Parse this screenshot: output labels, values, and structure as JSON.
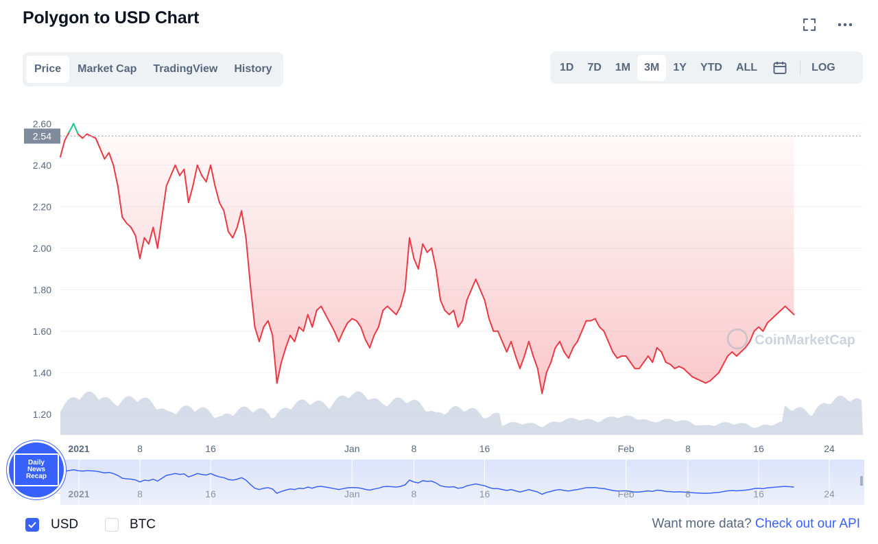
{
  "page": {
    "title": "Polygon to USD Chart"
  },
  "header_icons": [
    "fullscreen-icon",
    "more-icon"
  ],
  "tabs": [
    {
      "label": "Price",
      "active": true
    },
    {
      "label": "Market Cap",
      "active": false
    },
    {
      "label": "TradingView",
      "active": false
    },
    {
      "label": "History",
      "active": false
    }
  ],
  "ranges": [
    {
      "label": "1D",
      "active": false
    },
    {
      "label": "7D",
      "active": false
    },
    {
      "label": "1M",
      "active": false
    },
    {
      "label": "3M",
      "active": true
    },
    {
      "label": "1Y",
      "active": false
    },
    {
      "label": "YTD",
      "active": false
    },
    {
      "label": "ALL",
      "active": false
    }
  ],
  "log_label": "LOG",
  "watermark": "CoinMarketCap",
  "badge": {
    "lines": [
      "Daily",
      "News",
      "Recap"
    ]
  },
  "currencies": [
    {
      "label": "USD",
      "checked": true
    },
    {
      "label": "BTC",
      "checked": false
    }
  ],
  "api": {
    "text": "Want more data?",
    "link": "Check out our API"
  },
  "colors": {
    "down": "#ea3943",
    "up": "#16c784",
    "volume": "#cfd6e4",
    "accent": "#3861fb",
    "navigator_line": "#3861fb"
  },
  "chart_data": {
    "type": "line",
    "y_ticks": [
      "2.60",
      "2.40",
      "2.20",
      "2.00",
      "1.80",
      "1.60",
      "1.40",
      "1.20"
    ],
    "ylim": [
      1.1,
      2.7
    ],
    "reference_value": 2.54,
    "reference_label": "2.54",
    "x_ticks": [
      {
        "label": "2021",
        "bold": true,
        "day": 0
      },
      {
        "label": "8",
        "day": 7
      },
      {
        "label": "16",
        "day": 15
      },
      {
        "label": "Jan",
        "day": 31
      },
      {
        "label": "8",
        "day": 38
      },
      {
        "label": "16",
        "day": 46
      },
      {
        "label": "Feb",
        "day": 62
      },
      {
        "label": "8",
        "day": 69
      },
      {
        "label": "16",
        "day": 77
      },
      {
        "label": "24",
        "day": 85
      }
    ],
    "x_range_days": [
      -2,
      88.8
    ],
    "series": [
      {
        "points": [
          [
            -2,
            2.44
          ],
          [
            -1.5,
            2.52
          ],
          [
            -1,
            2.56
          ],
          [
            -0.5,
            2.6
          ],
          [
            0,
            2.55
          ],
          [
            0.5,
            2.53
          ],
          [
            1,
            2.55
          ],
          [
            1.5,
            2.54
          ],
          [
            2,
            2.53
          ],
          [
            2.5,
            2.48
          ],
          [
            3,
            2.43
          ],
          [
            3.5,
            2.46
          ],
          [
            4,
            2.4
          ],
          [
            4.5,
            2.3
          ],
          [
            5,
            2.15
          ],
          [
            5.5,
            2.12
          ],
          [
            6,
            2.1
          ],
          [
            6.5,
            2.06
          ],
          [
            7,
            1.95
          ],
          [
            7.5,
            2.05
          ],
          [
            8,
            2.02
          ],
          [
            8.5,
            2.1
          ],
          [
            9,
            2.0
          ],
          [
            9.5,
            2.15
          ],
          [
            10,
            2.3
          ],
          [
            10.5,
            2.35
          ],
          [
            11,
            2.4
          ],
          [
            11.5,
            2.35
          ],
          [
            12,
            2.38
          ],
          [
            12.5,
            2.22
          ],
          [
            13,
            2.3
          ],
          [
            13.5,
            2.4
          ],
          [
            14,
            2.35
          ],
          [
            14.5,
            2.32
          ],
          [
            15,
            2.4
          ],
          [
            15.5,
            2.3
          ],
          [
            16,
            2.22
          ],
          [
            16.5,
            2.18
          ],
          [
            17,
            2.08
          ],
          [
            17.5,
            2.05
          ],
          [
            18,
            2.1
          ],
          [
            18.5,
            2.18
          ],
          [
            19,
            2.05
          ],
          [
            19.5,
            1.82
          ],
          [
            20,
            1.62
          ],
          [
            20.5,
            1.55
          ],
          [
            21,
            1.62
          ],
          [
            21.5,
            1.65
          ],
          [
            22,
            1.58
          ],
          [
            22.5,
            1.35
          ],
          [
            23,
            1.45
          ],
          [
            23.5,
            1.52
          ],
          [
            24,
            1.58
          ],
          [
            24.5,
            1.55
          ],
          [
            25,
            1.62
          ],
          [
            25.5,
            1.6
          ],
          [
            26,
            1.68
          ],
          [
            26.5,
            1.62
          ],
          [
            27,
            1.7
          ],
          [
            27.5,
            1.72
          ],
          [
            28,
            1.68
          ],
          [
            28.5,
            1.64
          ],
          [
            29,
            1.6
          ],
          [
            29.5,
            1.55
          ],
          [
            30,
            1.6
          ],
          [
            30.5,
            1.64
          ],
          [
            31,
            1.66
          ],
          [
            31.5,
            1.65
          ],
          [
            32,
            1.62
          ],
          [
            32.5,
            1.56
          ],
          [
            33,
            1.52
          ],
          [
            33.5,
            1.58
          ],
          [
            34,
            1.62
          ],
          [
            34.5,
            1.7
          ],
          [
            35,
            1.72
          ],
          [
            35.5,
            1.7
          ],
          [
            36,
            1.68
          ],
          [
            36.5,
            1.72
          ],
          [
            37,
            1.8
          ],
          [
            37.5,
            2.05
          ],
          [
            38,
            1.95
          ],
          [
            38.5,
            1.9
          ],
          [
            39,
            2.02
          ],
          [
            39.5,
            1.98
          ],
          [
            40,
            2.0
          ],
          [
            40.5,
            1.9
          ],
          [
            41,
            1.75
          ],
          [
            41.5,
            1.7
          ],
          [
            42,
            1.68
          ],
          [
            42.5,
            1.7
          ],
          [
            43,
            1.62
          ],
          [
            43.5,
            1.65
          ],
          [
            44,
            1.75
          ],
          [
            44.5,
            1.8
          ],
          [
            45,
            1.85
          ],
          [
            45.5,
            1.8
          ],
          [
            46,
            1.75
          ],
          [
            46.5,
            1.66
          ],
          [
            47,
            1.6
          ],
          [
            47.5,
            1.6
          ],
          [
            48,
            1.55
          ],
          [
            48.5,
            1.5
          ],
          [
            49,
            1.55
          ],
          [
            49.5,
            1.48
          ],
          [
            50,
            1.42
          ],
          [
            50.5,
            1.48
          ],
          [
            51,
            1.55
          ],
          [
            51.5,
            1.48
          ],
          [
            52,
            1.42
          ],
          [
            52.5,
            1.3
          ],
          [
            53,
            1.4
          ],
          [
            53.5,
            1.45
          ],
          [
            54,
            1.52
          ],
          [
            54.5,
            1.55
          ],
          [
            55,
            1.5
          ],
          [
            55.5,
            1.47
          ],
          [
            56,
            1.52
          ],
          [
            56.5,
            1.55
          ],
          [
            57,
            1.6
          ],
          [
            57.5,
            1.65
          ],
          [
            58,
            1.65
          ],
          [
            58.5,
            1.66
          ],
          [
            59,
            1.62
          ],
          [
            59.5,
            1.6
          ],
          [
            60,
            1.55
          ],
          [
            60.5,
            1.5
          ],
          [
            61,
            1.47
          ],
          [
            61.5,
            1.48
          ],
          [
            62,
            1.48
          ],
          [
            62.5,
            1.45
          ],
          [
            63,
            1.42
          ],
          [
            63.5,
            1.42
          ],
          [
            64,
            1.45
          ],
          [
            64.5,
            1.48
          ],
          [
            65,
            1.45
          ],
          [
            65.5,
            1.52
          ],
          [
            66,
            1.5
          ],
          [
            66.5,
            1.45
          ],
          [
            67,
            1.44
          ],
          [
            67.5,
            1.42
          ],
          [
            68,
            1.43
          ],
          [
            68.5,
            1.42
          ],
          [
            69,
            1.4
          ],
          [
            69.5,
            1.38
          ],
          [
            70,
            1.37
          ],
          [
            70.5,
            1.36
          ],
          [
            71,
            1.35
          ],
          [
            71.5,
            1.36
          ],
          [
            72,
            1.38
          ],
          [
            72.5,
            1.4
          ],
          [
            73,
            1.44
          ],
          [
            73.5,
            1.48
          ],
          [
            74,
            1.5
          ],
          [
            74.5,
            1.48
          ],
          [
            75,
            1.5
          ],
          [
            75.5,
            1.52
          ],
          [
            76,
            1.55
          ],
          [
            76.5,
            1.6
          ],
          [
            77,
            1.62
          ],
          [
            77.5,
            1.6
          ],
          [
            78,
            1.64
          ],
          [
            78.5,
            1.66
          ],
          [
            79,
            1.68
          ],
          [
            79.5,
            1.7
          ],
          [
            80,
            1.72
          ],
          [
            80.5,
            1.7
          ],
          [
            81,
            1.68
          ]
        ],
        "color": "#ea3943"
      }
    ],
    "grid": true,
    "volume_series": "area",
    "navigator": true
  }
}
